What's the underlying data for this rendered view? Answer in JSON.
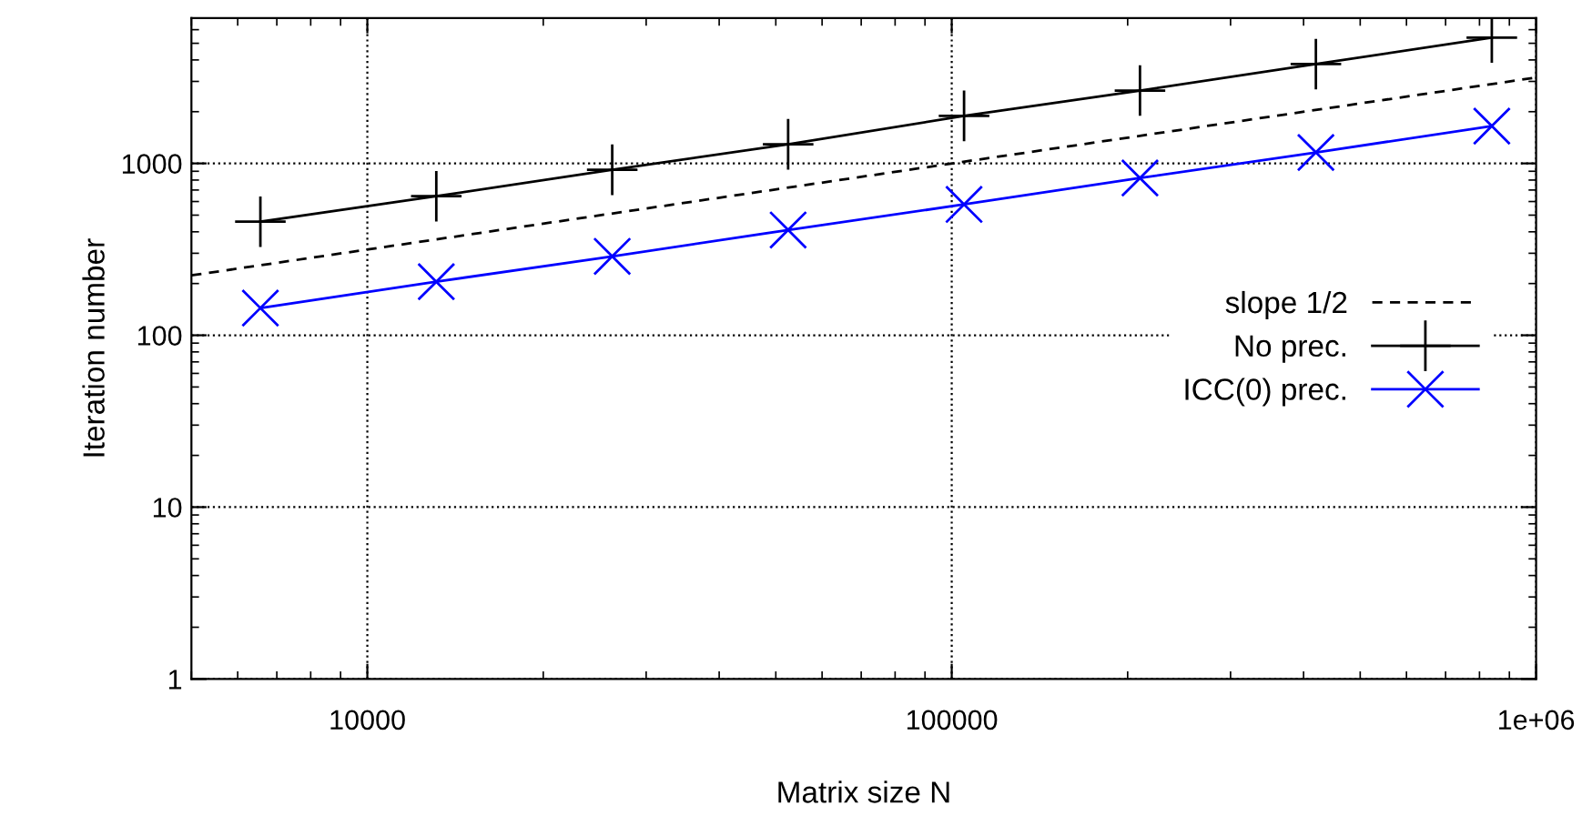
{
  "chart_data": {
    "type": "line",
    "xlabel": "Matrix size N",
    "ylabel": "Iteration number",
    "log": "xy",
    "xlim": [
      5000,
      1000000
    ],
    "ylim": [
      1,
      7000
    ],
    "xticks": [
      10000,
      100000,
      {
        "value": 1000000,
        "label": "1e+06"
      }
    ],
    "yticks": [
      1,
      10,
      100,
      1000
    ],
    "grid": true,
    "legend": "right",
    "x": [
      6561,
      13122,
      26244,
      52488,
      104976,
      209952,
      419904,
      839808
    ],
    "series": [
      {
        "name": "slope 1/2",
        "color": "#000000",
        "line_style": "dashed",
        "marker": "none",
        "x": [
          5000,
          1000000
        ],
        "values": [
          223,
          3160
        ]
      },
      {
        "name": "No prec.",
        "color": "#000000",
        "line_style": "solid",
        "marker": "cross",
        "values": [
          458,
          644,
          918,
          1292,
          1890,
          2655,
          3785,
          5400
        ]
      },
      {
        "name": "ICC(0) prec.",
        "color": "#0000ff",
        "line_style": "solid",
        "marker": "cross",
        "values": [
          144,
          205,
          288,
          410,
          577,
          822,
          1158,
          1650
        ]
      }
    ]
  }
}
